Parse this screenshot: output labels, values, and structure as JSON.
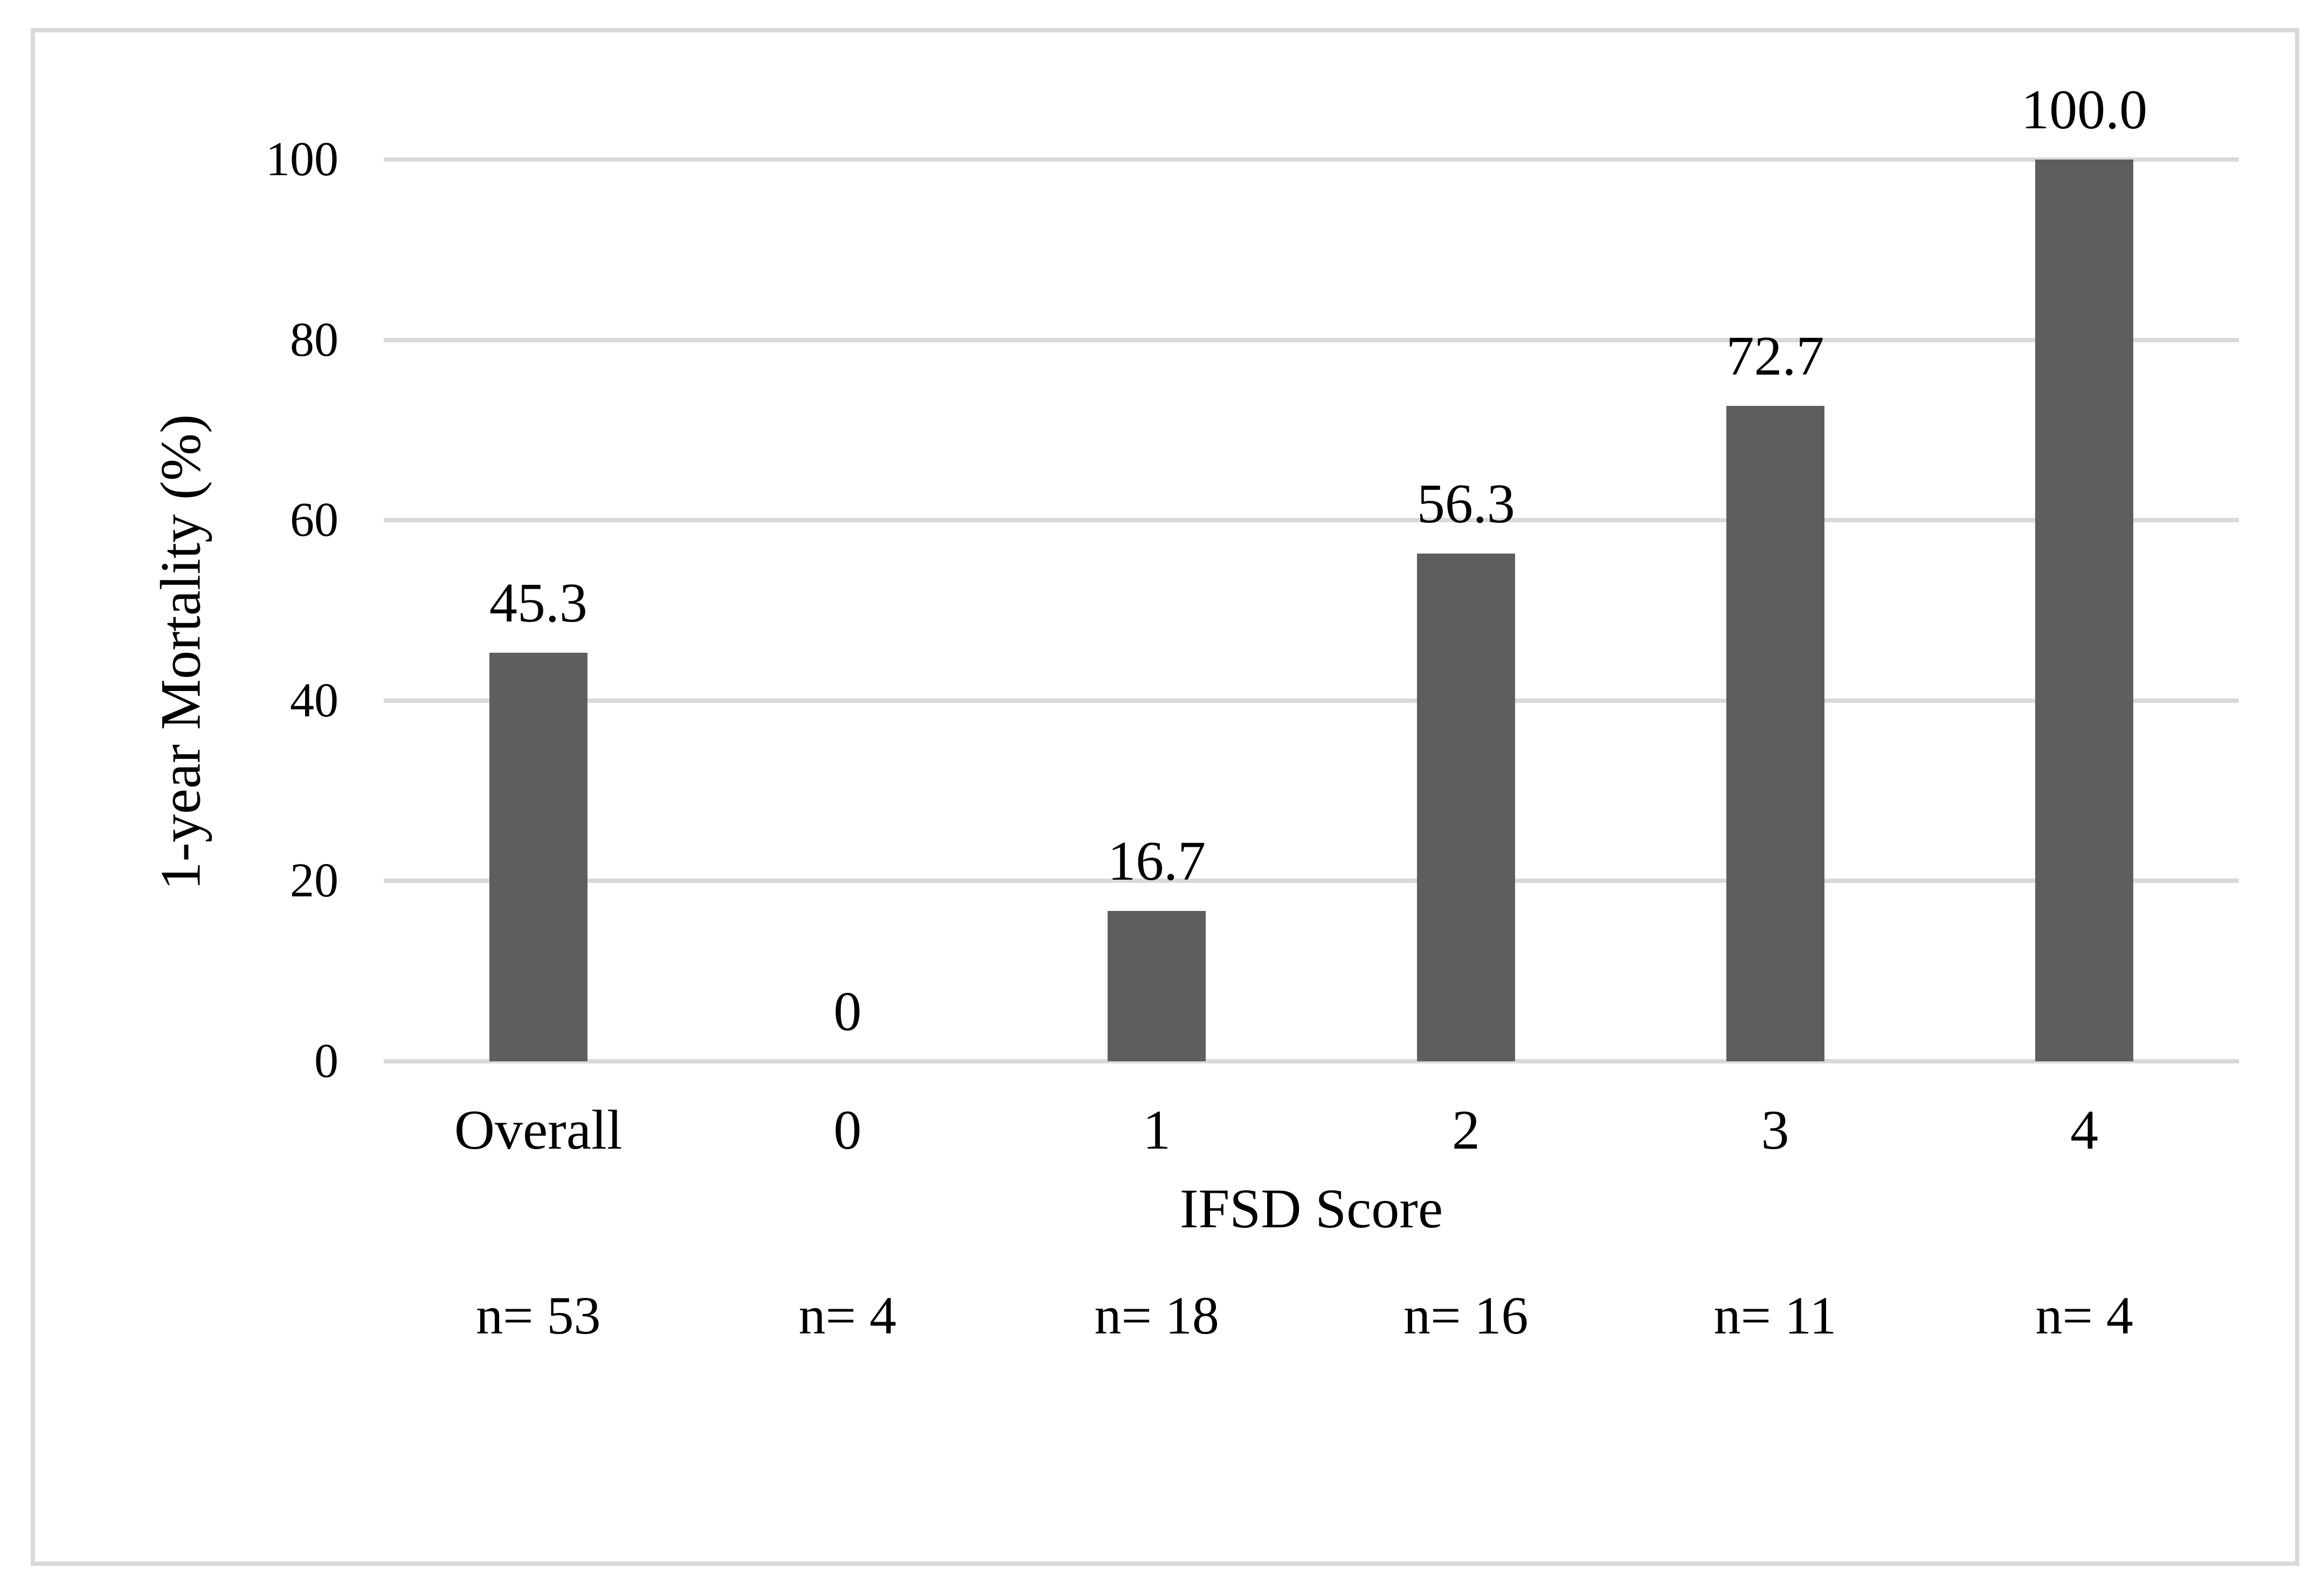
{
  "chart_data": {
    "type": "bar",
    "title": "",
    "categories": [
      "Overall",
      "0",
      "1",
      "2",
      "3",
      "4"
    ],
    "values": [
      45.3,
      0,
      16.7,
      56.3,
      72.7,
      100.0
    ],
    "value_labels": [
      "45.3",
      "0",
      "16.7",
      "56.3",
      "72.7",
      "100.0"
    ],
    "counts": [
      "n= 53",
      "n= 4",
      "n= 18",
      "n= 16",
      "n= 11",
      "n= 4"
    ],
    "xlabel": "IFSD Score",
    "ylabel": "1-year Mortality (%)",
    "y_ticks": [
      "100",
      "80",
      "60",
      "40",
      "20",
      "0"
    ],
    "y_tick_values": [
      100,
      80,
      60,
      40,
      20,
      0
    ],
    "ylim": [
      0,
      100
    ],
    "grid": "horizontal",
    "legend": "none",
    "bar_color": "#5E5E5E",
    "gridline_color": "#D9D9D9",
    "frame_color": "#D9D9D9",
    "text_color": "#000000",
    "background_color": "#FFFFFF"
  }
}
